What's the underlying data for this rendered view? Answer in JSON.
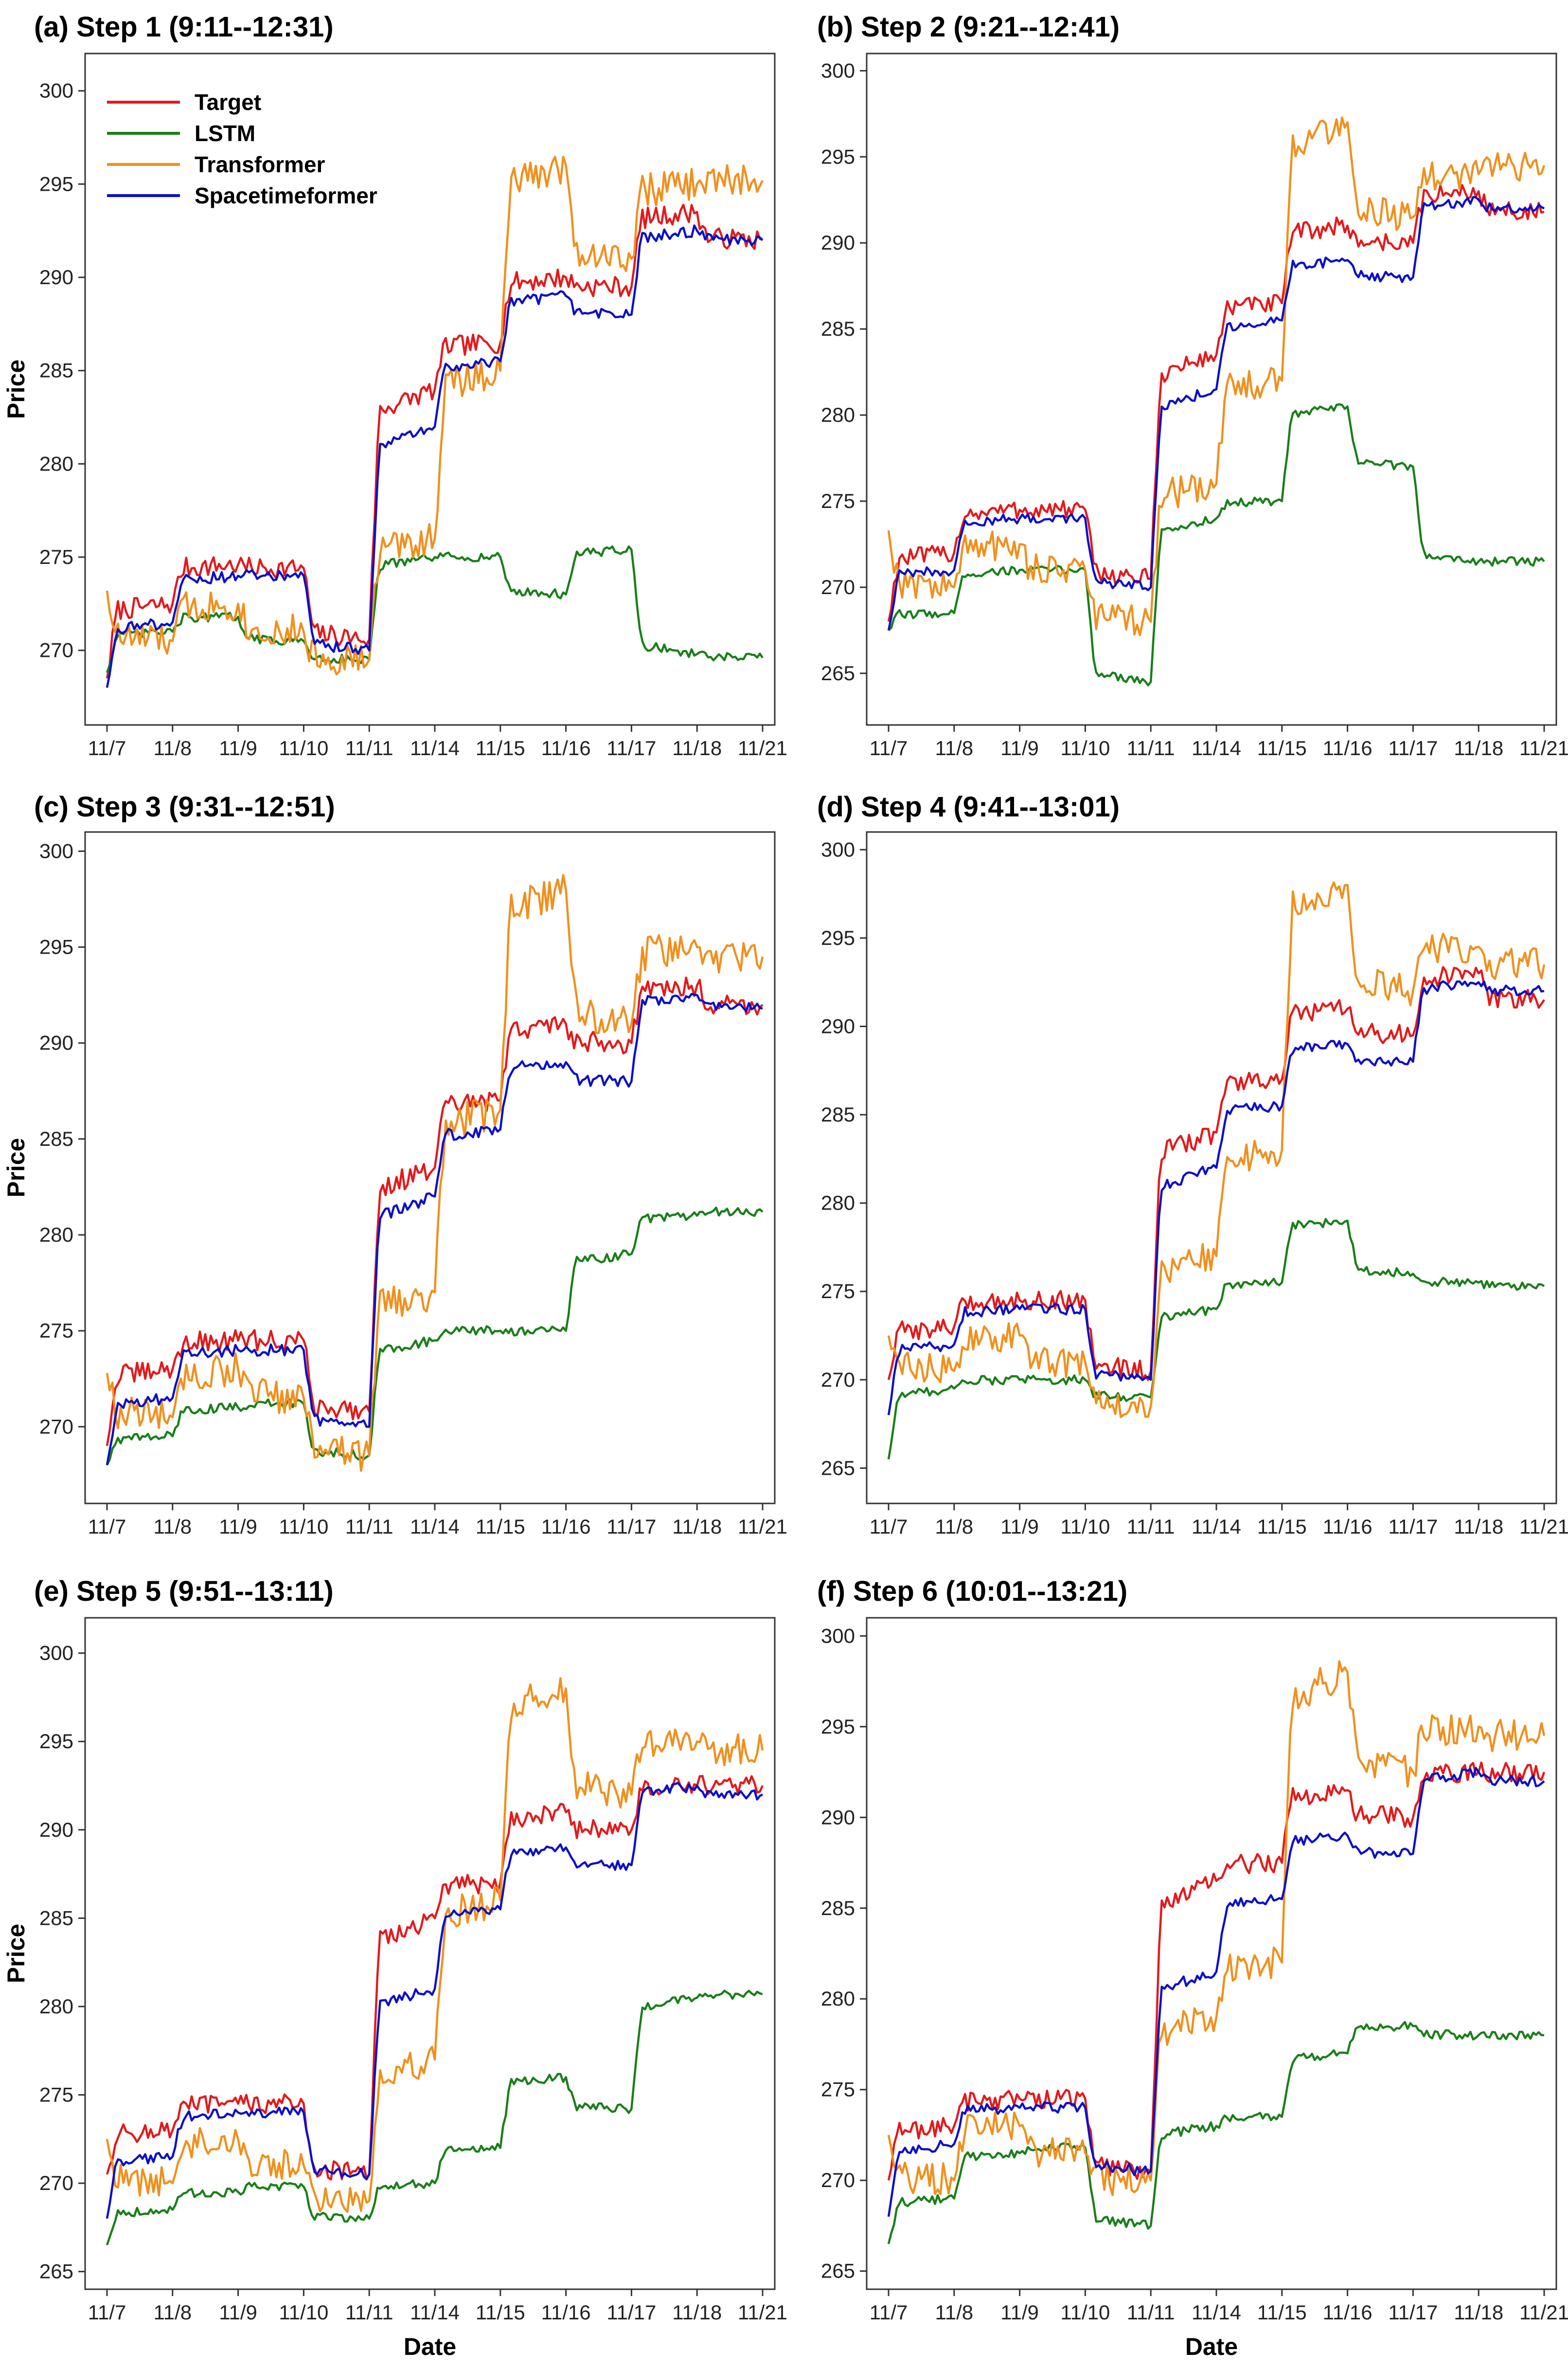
{
  "figure": {
    "series_styles": [
      {
        "name": "Target",
        "color": "#e31a1c"
      },
      {
        "name": "LSTM",
        "color": "#1a7f1a"
      },
      {
        "name": "Transformer",
        "color": "#f0901e"
      },
      {
        "name": "Spacetimeformer",
        "color": "#0b10c8"
      }
    ]
  },
  "chart_data": [
    {
      "type": "line",
      "title": "(a)  Step 1 (9:11--12:31)",
      "xlabel": "",
      "ylabel": "Price",
      "categories": [
        "11/7",
        "11/8",
        "11/9",
        "11/10",
        "11/11",
        "11/14",
        "11/15",
        "11/16",
        "11/17",
        "11/18",
        "11/21"
      ],
      "ylim": [
        266,
        302
      ],
      "yticks": [
        270,
        275,
        280,
        285,
        290,
        295,
        300
      ],
      "legend": "top-left",
      "legend_entries": [
        "Target",
        "LSTM",
        "Transformer",
        "Spacetimeformer"
      ],
      "series": [
        {
          "name": "Target",
          "values": [
            268.5,
            272.5,
            274.6,
            274.4,
            270.6,
            284.0,
            286.5,
            290.0,
            289.5,
            293.5,
            292.0
          ]
        },
        {
          "name": "LSTM",
          "values": [
            268.8,
            271.0,
            271.8,
            270.5,
            269.5,
            275.0,
            275.0,
            273.0,
            275.4,
            269.8,
            269.6
          ]
        },
        {
          "name": "Transformer",
          "values": [
            273.2,
            270.5,
            272.5,
            271.0,
            269.5,
            276.0,
            285.0,
            296.0,
            291.0,
            295.0,
            295.2
          ]
        },
        {
          "name": "Spacetimeformer",
          "values": [
            268.0,
            271.5,
            274.0,
            274.0,
            270.0,
            282.0,
            285.5,
            289.0,
            288.0,
            292.5,
            292.0
          ]
        }
      ]
    },
    {
      "type": "line",
      "title": "(b) Step 2 (9:21--12:41)",
      "xlabel": "",
      "ylabel": "",
      "categories": [
        "11/7",
        "11/8",
        "11/9",
        "11/10",
        "11/11",
        "11/14",
        "11/15",
        "11/16",
        "11/17",
        "11/18",
        "11/21"
      ],
      "ylim": [
        262,
        301
      ],
      "yticks": [
        265,
        270,
        275,
        280,
        285,
        290,
        295,
        300
      ],
      "series": [
        {
          "name": "Target",
          "values": [
            268.0,
            272.0,
            274.5,
            274.5,
            270.5,
            283.5,
            286.5,
            291.0,
            290.0,
            293.0,
            291.8
          ]
        },
        {
          "name": "LSTM",
          "values": [
            267.5,
            268.5,
            271.0,
            271.0,
            264.5,
            274.0,
            275.0,
            280.5,
            277.0,
            271.5,
            271.5
          ]
        },
        {
          "name": "Transformer",
          "values": [
            273.3,
            270.0,
            272.5,
            271.0,
            268.0,
            276.0,
            282.0,
            297.0,
            291.5,
            294.0,
            294.5
          ]
        },
        {
          "name": "Spacetimeformer",
          "values": [
            267.5,
            271.0,
            274.0,
            274.0,
            270.0,
            281.5,
            285.5,
            289.0,
            288.0,
            292.5,
            292.0
          ]
        }
      ]
    },
    {
      "type": "line",
      "title": "(c) Step 3 (9:31--12:51)",
      "xlabel": "",
      "ylabel": "Price",
      "categories": [
        "11/7",
        "11/8",
        "11/9",
        "11/10",
        "11/11",
        "11/14",
        "11/15",
        "11/16",
        "11/17",
        "11/18",
        "11/21"
      ],
      "ylim": [
        266,
        301
      ],
      "yticks": [
        270,
        275,
        280,
        285,
        290,
        295,
        300
      ],
      "series": [
        {
          "name": "Target",
          "values": [
            269.0,
            273.0,
            274.5,
            274.5,
            270.8,
            283.5,
            287.0,
            291.0,
            290.0,
            293.0,
            292.0
          ]
        },
        {
          "name": "LSTM",
          "values": [
            268.0,
            269.5,
            271.0,
            271.2,
            268.5,
            274.5,
            275.0,
            275.0,
            279.0,
            281.0,
            281.2
          ]
        },
        {
          "name": "Transformer",
          "values": [
            272.8,
            270.5,
            273.0,
            271.5,
            268.5,
            277.0,
            286.5,
            298.0,
            291.0,
            295.0,
            294.5
          ]
        },
        {
          "name": "Spacetimeformer",
          "values": [
            268.0,
            271.5,
            274.0,
            274.0,
            270.0,
            282.0,
            285.5,
            289.0,
            288.0,
            292.5,
            291.8
          ]
        }
      ]
    },
    {
      "type": "line",
      "title": "(d) Step 4 (9:41--13:01)",
      "xlabel": "",
      "ylabel": "",
      "categories": [
        "11/7",
        "11/8",
        "11/9",
        "11/10",
        "11/11",
        "11/14",
        "11/15",
        "11/16",
        "11/17",
        "11/18",
        "11/21"
      ],
      "ylim": [
        263,
        301
      ],
      "yticks": [
        265,
        270,
        275,
        280,
        285,
        290,
        295,
        300
      ],
      "series": [
        {
          "name": "Target",
          "values": [
            270.0,
            273.0,
            274.5,
            274.5,
            270.5,
            284.0,
            287.0,
            291.0,
            289.5,
            293.0,
            291.5
          ]
        },
        {
          "name": "LSTM",
          "values": [
            265.5,
            269.5,
            270.0,
            270.0,
            269.0,
            274.0,
            275.5,
            279.0,
            276.0,
            275.5,
            275.3
          ]
        },
        {
          "name": "Transformer",
          "values": [
            272.5,
            270.5,
            272.5,
            271.0,
            268.5,
            277.0,
            283.0,
            298.0,
            292.0,
            294.5,
            293.5
          ]
        },
        {
          "name": "Spacetimeformer",
          "values": [
            268.0,
            272.0,
            274.0,
            274.0,
            270.0,
            282.0,
            285.5,
            289.0,
            288.0,
            292.5,
            292.0
          ]
        }
      ]
    },
    {
      "type": "line",
      "title": "(e) Step 5 (9:51--13:11)",
      "xlabel": "Date",
      "ylabel": "Price",
      "categories": [
        "11/7",
        "11/8",
        "11/9",
        "11/10",
        "11/11",
        "11/14",
        "11/15",
        "11/16",
        "11/17",
        "11/18",
        "11/21"
      ],
      "ylim": [
        264,
        302
      ],
      "yticks": [
        265,
        270,
        275,
        280,
        285,
        290,
        295,
        300
      ],
      "series": [
        {
          "name": "Target",
          "values": [
            270.5,
            273.0,
            274.5,
            274.5,
            270.5,
            285.0,
            287.0,
            291.0,
            290.0,
            292.5,
            292.5
          ]
        },
        {
          "name": "LSTM",
          "values": [
            266.5,
            268.5,
            269.5,
            269.8,
            268.0,
            270.0,
            272.0,
            276.0,
            274.2,
            280.5,
            280.7
          ]
        },
        {
          "name": "Transformer",
          "values": [
            272.5,
            270.0,
            272.5,
            271.0,
            269.0,
            277.0,
            286.0,
            298.0,
            292.0,
            295.0,
            294.5
          ]
        },
        {
          "name": "Spacetimeformer",
          "values": [
            268.0,
            271.5,
            274.0,
            274.0,
            270.5,
            281.0,
            285.5,
            289.0,
            288.0,
            292.5,
            292.0
          ]
        }
      ]
    },
    {
      "type": "line",
      "title": "(f) Step 6 (10:01--13:21)",
      "xlabel": "Date",
      "ylabel": "",
      "categories": [
        "11/7",
        "11/8",
        "11/9",
        "11/10",
        "11/11",
        "11/14",
        "11/15",
        "11/16",
        "11/17",
        "11/18",
        "11/21"
      ],
      "ylim": [
        264,
        301
      ],
      "yticks": [
        265,
        270,
        275,
        280,
        285,
        290,
        295,
        300
      ],
      "series": [
        {
          "name": "Target",
          "values": [
            270.0,
            273.0,
            274.5,
            274.5,
            270.5,
            286.5,
            287.5,
            291.5,
            290.0,
            292.5,
            292.5
          ]
        },
        {
          "name": "LSTM",
          "values": [
            266.5,
            269.0,
            271.5,
            271.8,
            267.5,
            273.0,
            273.5,
            277.0,
            278.5,
            278.0,
            278.0
          ]
        },
        {
          "name": "Transformer",
          "values": [
            272.5,
            270.0,
            273.0,
            271.5,
            270.0,
            279.0,
            282.0,
            298.0,
            292.5,
            295.0,
            294.5
          ]
        },
        {
          "name": "Spacetimeformer",
          "values": [
            268.0,
            272.0,
            274.0,
            274.0,
            270.5,
            281.5,
            285.5,
            289.0,
            288.0,
            292.5,
            292.0
          ]
        }
      ]
    }
  ]
}
